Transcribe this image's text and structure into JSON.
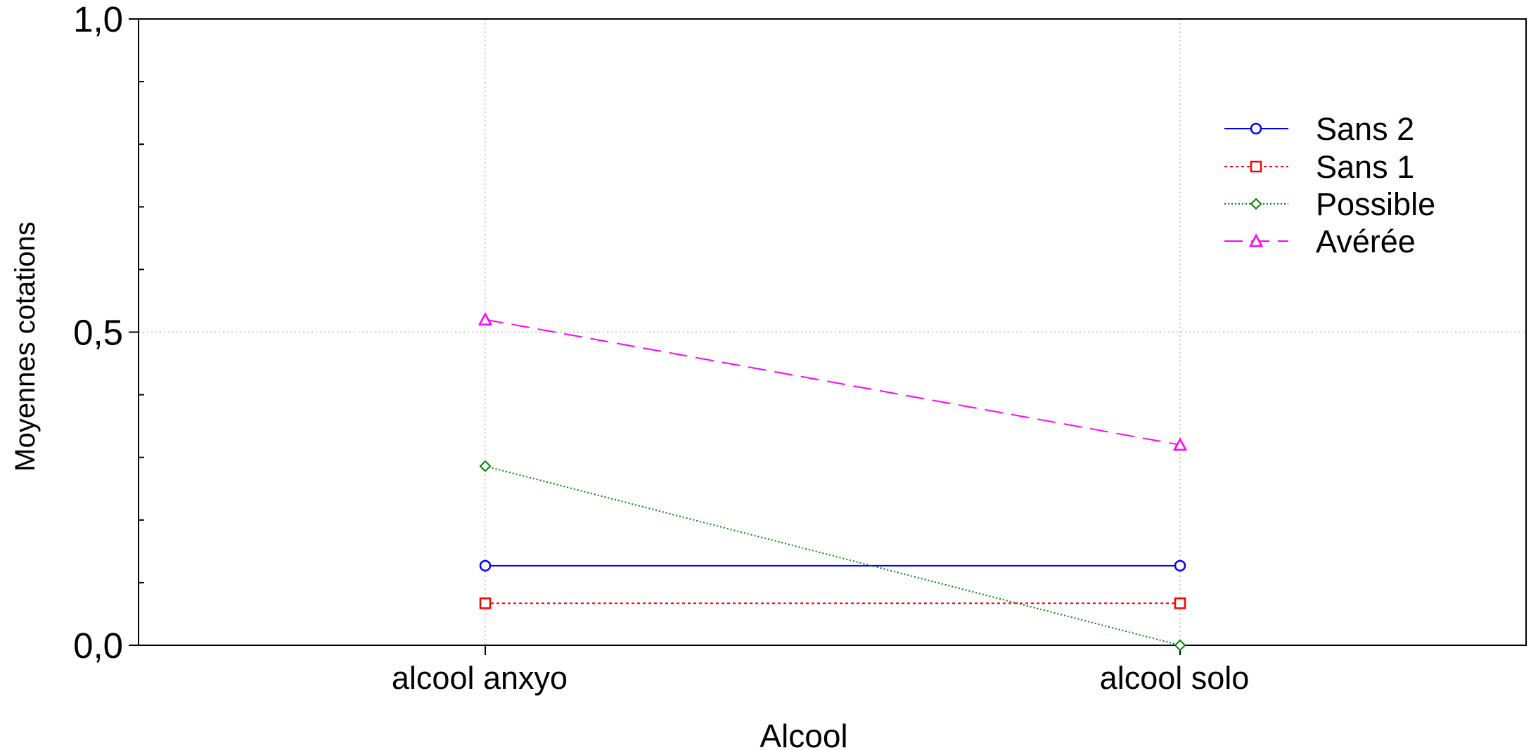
{
  "chart_data": {
    "type": "line",
    "title": "",
    "xlabel": "Alcool",
    "ylabel": "Moyennes cotations",
    "categories": [
      "alcool anxyo",
      "alcool solo"
    ],
    "ylim": [
      0,
      1
    ],
    "y_ticks": [
      "0,0",
      "0,5",
      "1,0"
    ],
    "y_tick_values": [
      0,
      0.5,
      1
    ],
    "grid": true,
    "legend_position": "top-right",
    "series": [
      {
        "name": "Sans 2",
        "values": [
          0.127,
          0.127
        ],
        "color": "#0000ff",
        "marker": "circle",
        "dash": "solid"
      },
      {
        "name": "Sans 1",
        "values": [
          0.067,
          0.067
        ],
        "color": "#ff0000",
        "marker": "square",
        "dash": "dotted"
      },
      {
        "name": "Possible",
        "values": [
          0.286,
          0.0
        ],
        "color": "#008000",
        "marker": "diamond",
        "dash": "fine-dotted"
      },
      {
        "name": "Avérée",
        "values": [
          0.52,
          0.32
        ],
        "color": "#ff00ff",
        "marker": "triangle",
        "dash": "dashed"
      }
    ]
  }
}
